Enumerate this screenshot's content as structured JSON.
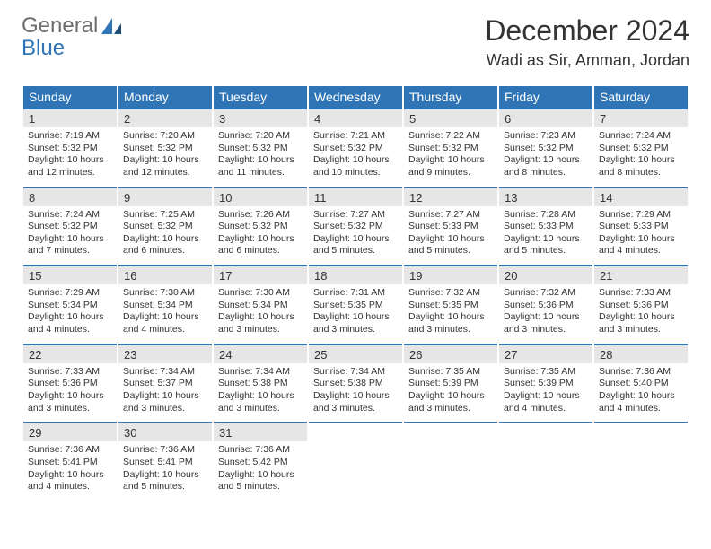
{
  "logo": {
    "line1": "General",
    "line2": "Blue"
  },
  "title": "December 2024",
  "location": "Wadi as Sir, Amman, Jordan",
  "colors": {
    "accent": "#2f75b5",
    "dayhead_bg": "#2f75b5",
    "dayhead_text": "#ffffff",
    "daynum_bg": "#e6e6e6",
    "text": "#333333",
    "logo_gray": "#6e6e6e"
  },
  "weekdays": [
    "Sunday",
    "Monday",
    "Tuesday",
    "Wednesday",
    "Thursday",
    "Friday",
    "Saturday"
  ],
  "weeks": [
    [
      {
        "n": "1",
        "sr": "7:19 AM",
        "ss": "5:32 PM",
        "dl": "10 hours and 12 minutes."
      },
      {
        "n": "2",
        "sr": "7:20 AM",
        "ss": "5:32 PM",
        "dl": "10 hours and 12 minutes."
      },
      {
        "n": "3",
        "sr": "7:20 AM",
        "ss": "5:32 PM",
        "dl": "10 hours and 11 minutes."
      },
      {
        "n": "4",
        "sr": "7:21 AM",
        "ss": "5:32 PM",
        "dl": "10 hours and 10 minutes."
      },
      {
        "n": "5",
        "sr": "7:22 AM",
        "ss": "5:32 PM",
        "dl": "10 hours and 9 minutes."
      },
      {
        "n": "6",
        "sr": "7:23 AM",
        "ss": "5:32 PM",
        "dl": "10 hours and 8 minutes."
      },
      {
        "n": "7",
        "sr": "7:24 AM",
        "ss": "5:32 PM",
        "dl": "10 hours and 8 minutes."
      }
    ],
    [
      {
        "n": "8",
        "sr": "7:24 AM",
        "ss": "5:32 PM",
        "dl": "10 hours and 7 minutes."
      },
      {
        "n": "9",
        "sr": "7:25 AM",
        "ss": "5:32 PM",
        "dl": "10 hours and 6 minutes."
      },
      {
        "n": "10",
        "sr": "7:26 AM",
        "ss": "5:32 PM",
        "dl": "10 hours and 6 minutes."
      },
      {
        "n": "11",
        "sr": "7:27 AM",
        "ss": "5:32 PM",
        "dl": "10 hours and 5 minutes."
      },
      {
        "n": "12",
        "sr": "7:27 AM",
        "ss": "5:33 PM",
        "dl": "10 hours and 5 minutes."
      },
      {
        "n": "13",
        "sr": "7:28 AM",
        "ss": "5:33 PM",
        "dl": "10 hours and 5 minutes."
      },
      {
        "n": "14",
        "sr": "7:29 AM",
        "ss": "5:33 PM",
        "dl": "10 hours and 4 minutes."
      }
    ],
    [
      {
        "n": "15",
        "sr": "7:29 AM",
        "ss": "5:34 PM",
        "dl": "10 hours and 4 minutes."
      },
      {
        "n": "16",
        "sr": "7:30 AM",
        "ss": "5:34 PM",
        "dl": "10 hours and 4 minutes."
      },
      {
        "n": "17",
        "sr": "7:30 AM",
        "ss": "5:34 PM",
        "dl": "10 hours and 3 minutes."
      },
      {
        "n": "18",
        "sr": "7:31 AM",
        "ss": "5:35 PM",
        "dl": "10 hours and 3 minutes."
      },
      {
        "n": "19",
        "sr": "7:32 AM",
        "ss": "5:35 PM",
        "dl": "10 hours and 3 minutes."
      },
      {
        "n": "20",
        "sr": "7:32 AM",
        "ss": "5:36 PM",
        "dl": "10 hours and 3 minutes."
      },
      {
        "n": "21",
        "sr": "7:33 AM",
        "ss": "5:36 PM",
        "dl": "10 hours and 3 minutes."
      }
    ],
    [
      {
        "n": "22",
        "sr": "7:33 AM",
        "ss": "5:36 PM",
        "dl": "10 hours and 3 minutes."
      },
      {
        "n": "23",
        "sr": "7:34 AM",
        "ss": "5:37 PM",
        "dl": "10 hours and 3 minutes."
      },
      {
        "n": "24",
        "sr": "7:34 AM",
        "ss": "5:38 PM",
        "dl": "10 hours and 3 minutes."
      },
      {
        "n": "25",
        "sr": "7:34 AM",
        "ss": "5:38 PM",
        "dl": "10 hours and 3 minutes."
      },
      {
        "n": "26",
        "sr": "7:35 AM",
        "ss": "5:39 PM",
        "dl": "10 hours and 3 minutes."
      },
      {
        "n": "27",
        "sr": "7:35 AM",
        "ss": "5:39 PM",
        "dl": "10 hours and 4 minutes."
      },
      {
        "n": "28",
        "sr": "7:36 AM",
        "ss": "5:40 PM",
        "dl": "10 hours and 4 minutes."
      }
    ],
    [
      {
        "n": "29",
        "sr": "7:36 AM",
        "ss": "5:41 PM",
        "dl": "10 hours and 4 minutes."
      },
      {
        "n": "30",
        "sr": "7:36 AM",
        "ss": "5:41 PM",
        "dl": "10 hours and 5 minutes."
      },
      {
        "n": "31",
        "sr": "7:36 AM",
        "ss": "5:42 PM",
        "dl": "10 hours and 5 minutes."
      },
      null,
      null,
      null,
      null
    ]
  ]
}
